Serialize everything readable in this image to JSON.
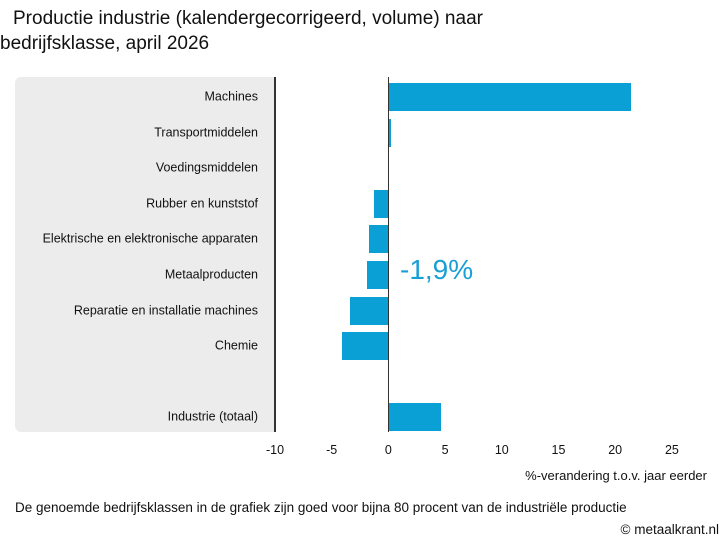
{
  "chart_data": {
    "type": "barh",
    "title": "Productie industrie (kalendergecorrigeerd, volume) naar bedrijfsklasse, april 2026",
    "categories": [
      "Machines",
      "Transportmiddelen",
      "Voedingsmiddelen",
      "Rubber en kunststof",
      "Elektrische en elektronische apparaten",
      "Metaalproducten",
      "Reparatie en installatie machines",
      "Chemie",
      "Industrie (totaal)"
    ],
    "values": [
      21.4,
      0.2,
      0,
      -1.3,
      -1.7,
      -1.9,
      -3.4,
      -4.1,
      4.6
    ],
    "color": "#0aa0d6",
    "xlim": [
      -10,
      27
    ],
    "xticks": [
      -10,
      -5,
      0,
      5,
      10,
      15,
      20,
      25
    ],
    "xlabel": "%-verandering t.o.v. jaar eerder",
    "annotation": "-1,9%",
    "footnote": "De genoemde bedrijfsklassen in de grafiek zijn goed voor bijna 80 procent van de industriële productie",
    "source": "© metaalkrant.nl"
  }
}
